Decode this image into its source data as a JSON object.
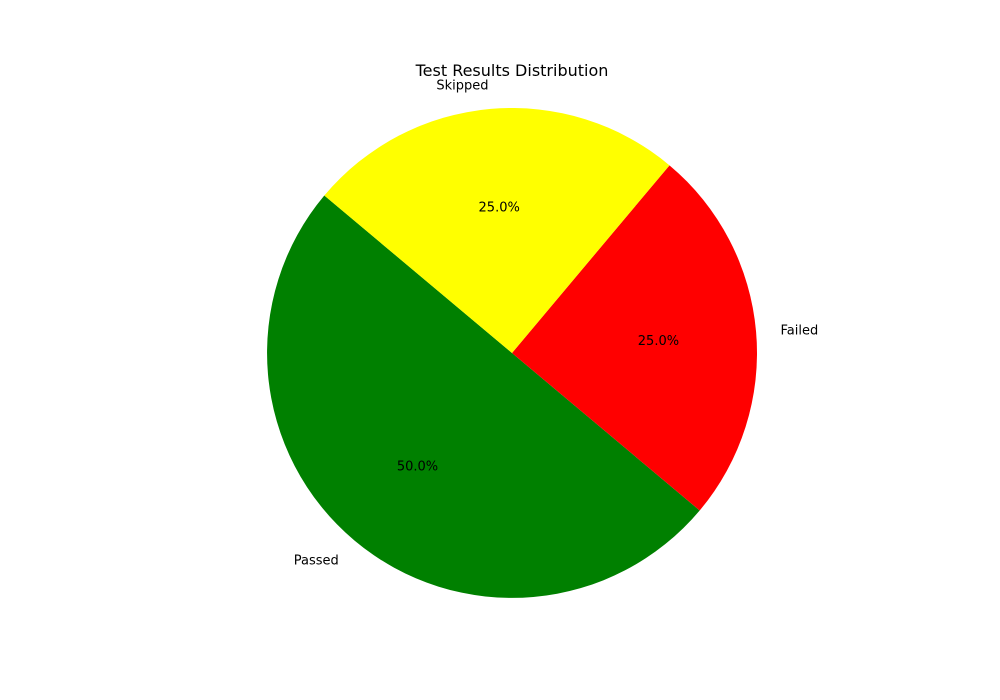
{
  "chart_data": {
    "type": "pie",
    "title": "Test Results Distribution",
    "categories": [
      "Passed",
      "Failed",
      "Skipped"
    ],
    "values": [
      50,
      25,
      25
    ],
    "percent_labels": [
      "50.0%",
      "25.0%",
      "25.0%"
    ],
    "colors": [
      "#008000",
      "#ff0000",
      "#ffff00"
    ],
    "start_angle_deg": 140,
    "direction": "counterclockwise",
    "legend": "none"
  }
}
